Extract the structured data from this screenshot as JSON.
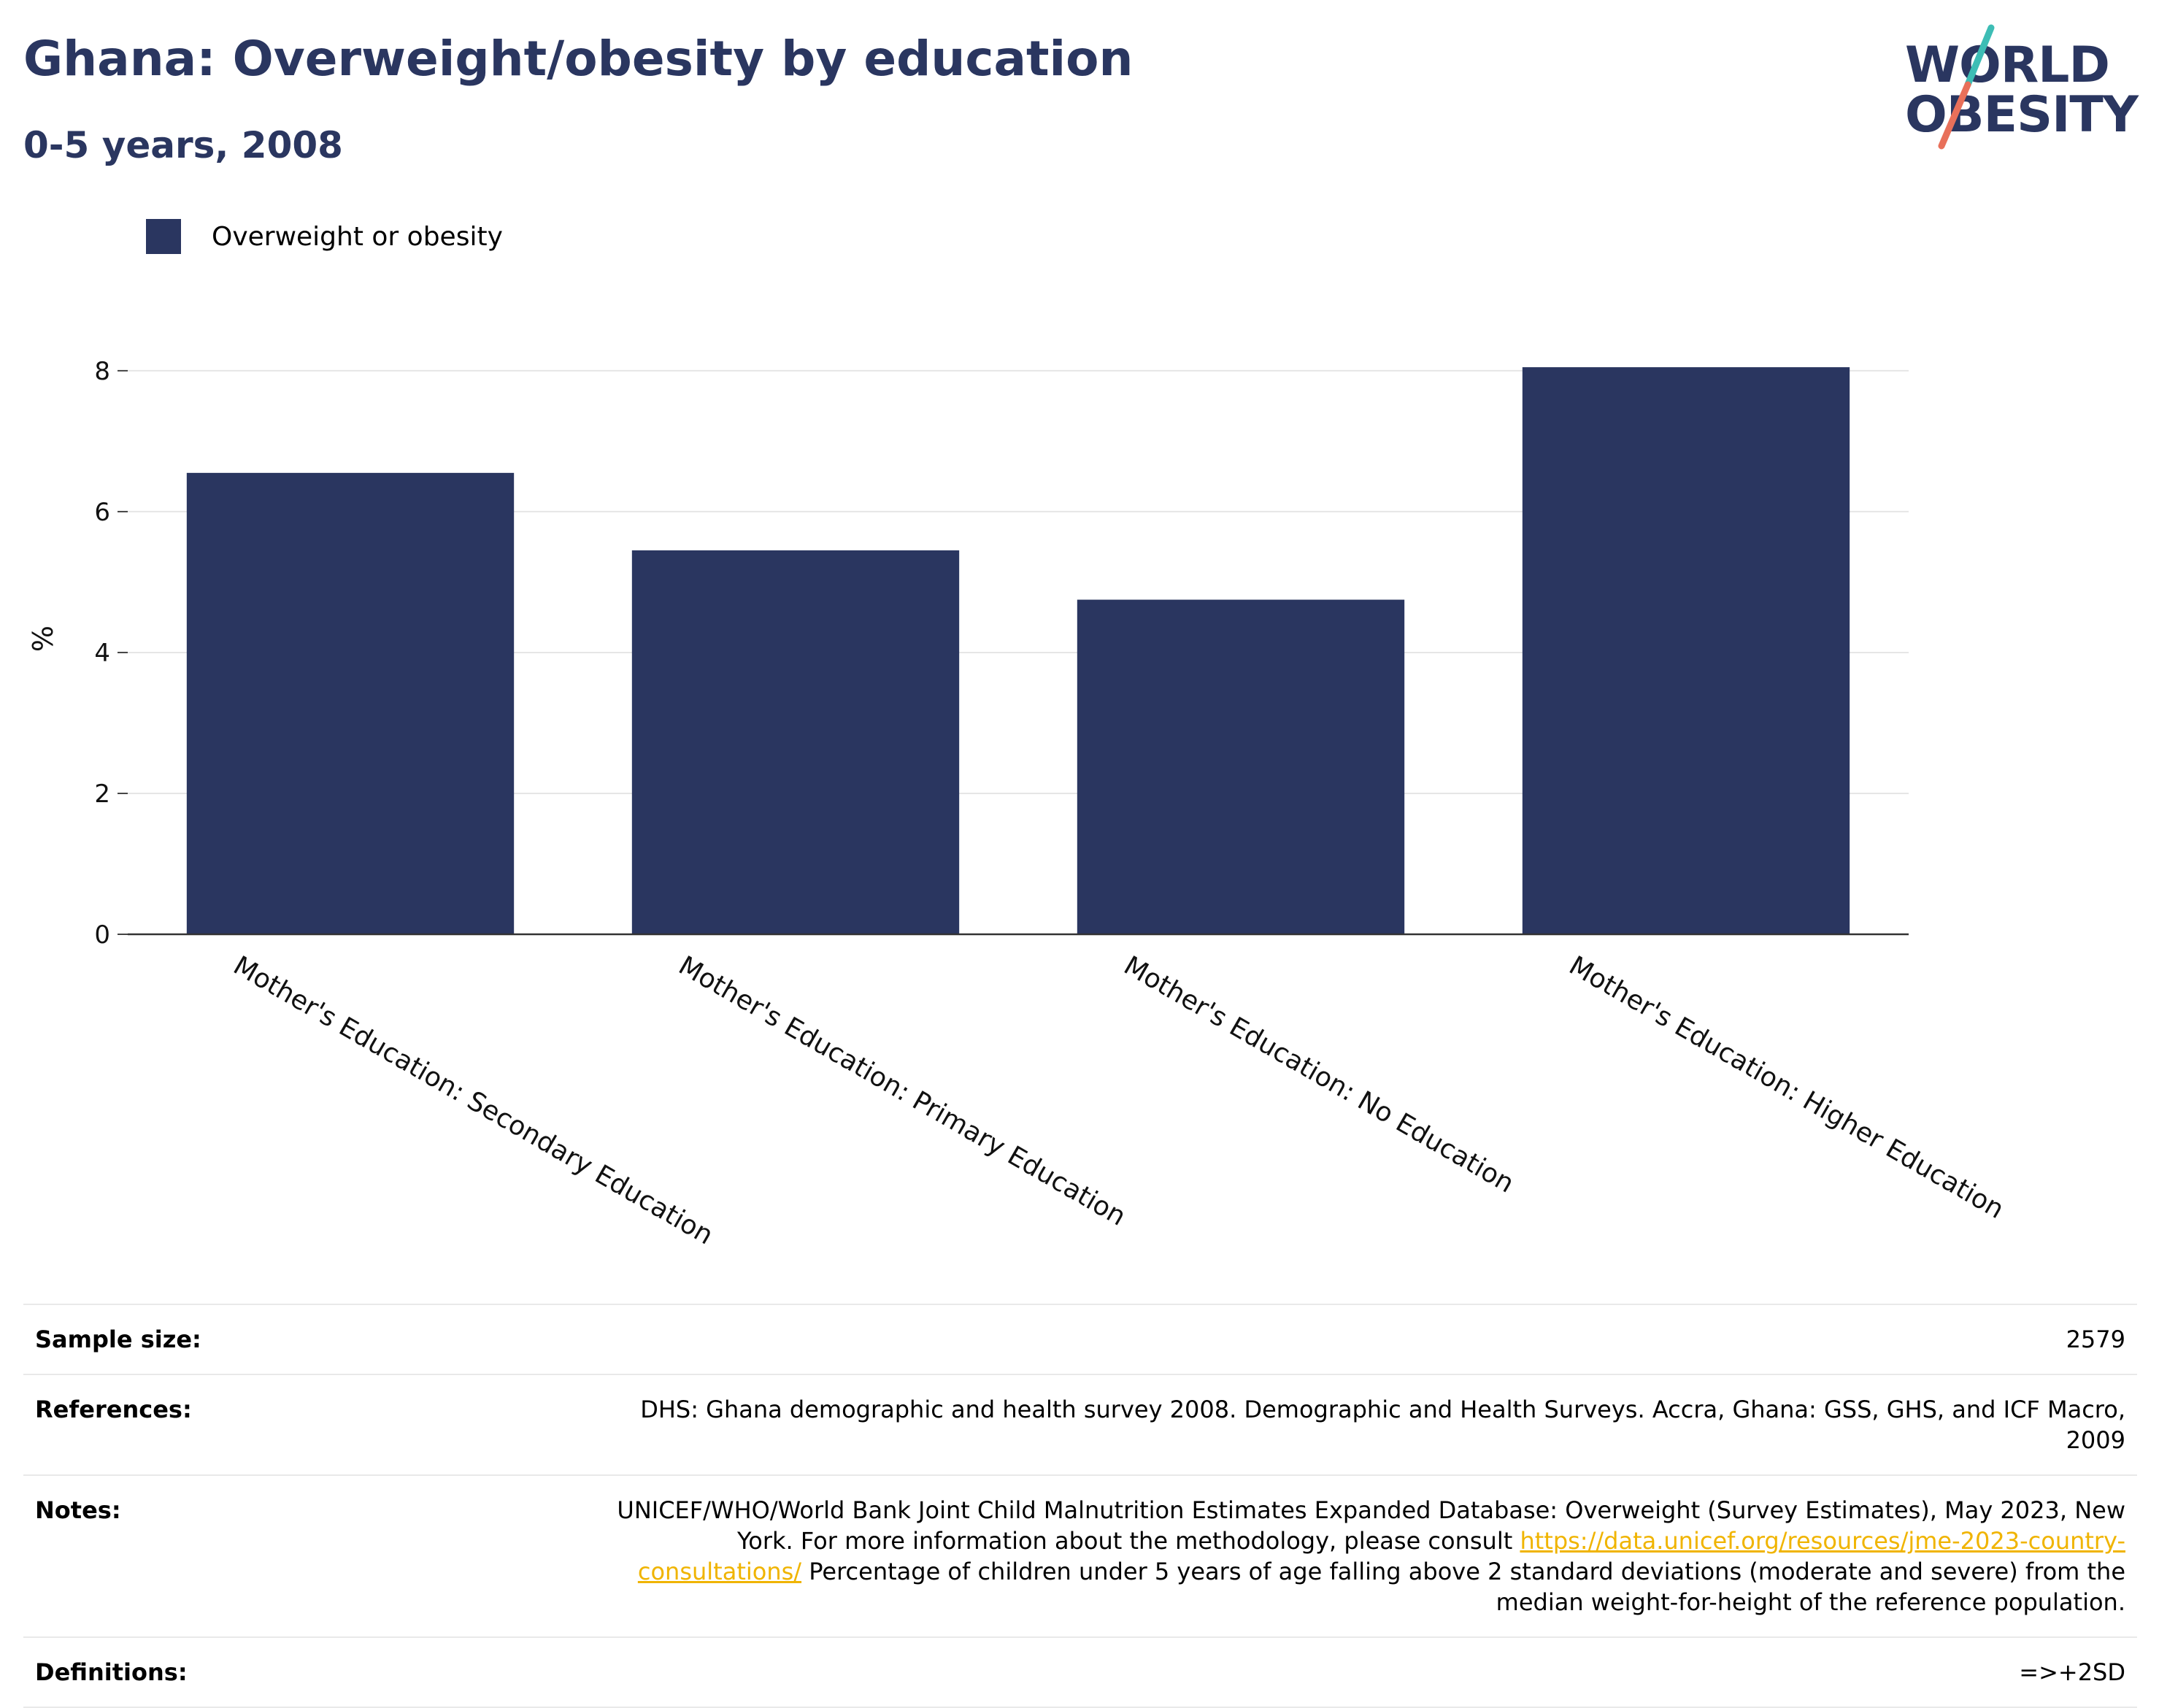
{
  "header": {
    "title": "Ghana: Overweight/obesity by education",
    "subtitle": "0-5 years, 2008"
  },
  "logo": {
    "line1": "WORLD",
    "line2": "OBESITY",
    "colors": {
      "navy": "#2a3660",
      "teal": "#3dbdb5",
      "coral": "#e8705a"
    }
  },
  "legend": {
    "label": "Overweight or obesity",
    "color": "#2a3660"
  },
  "chart_data": {
    "type": "bar",
    "title": "Ghana: Overweight/obesity by education",
    "subtitle": "0-5 years, 2008",
    "xlabel": "",
    "ylabel": "%",
    "ylim": [
      0,
      8.6
    ],
    "yticks": [
      0,
      2,
      4,
      6,
      8
    ],
    "grid": true,
    "legend_position": "top-left",
    "categories": [
      "Mother's Education: Secondary Education",
      "Mother's Education: Primary Education",
      "Mother's Education: No Education",
      "Mother's Education: Higher Education"
    ],
    "series": [
      {
        "name": "Overweight or obesity",
        "color": "#2a3660",
        "values": [
          6.55,
          5.45,
          4.75,
          8.05
        ]
      }
    ]
  },
  "info": {
    "sample_size": {
      "label": "Sample size:",
      "value": "2579"
    },
    "references": {
      "label": "References:",
      "value": "DHS: Ghana demographic and health survey 2008. Demographic and Health Surveys. Accra, Ghana: GSS, GHS, and ICF Macro, 2009"
    },
    "notes": {
      "label": "Notes:",
      "text_before": "UNICEF/WHO/World Bank Joint Child Malnutrition Estimates Expanded Database: Overweight (Survey Estimates), May 2023, New York. For more information about the methodology, please consult",
      "link": "https://data.unicef.org/resources/jme-2023-country-consultations/",
      "text_after": "Percentage of children under 5 years of age falling above 2 standard deviations (moderate and severe) from the median weight-for-height of the reference population.",
      "link_color": "#f0b400"
    },
    "definitions": {
      "label": "Definitions:",
      "value": "=>+2SD"
    }
  }
}
